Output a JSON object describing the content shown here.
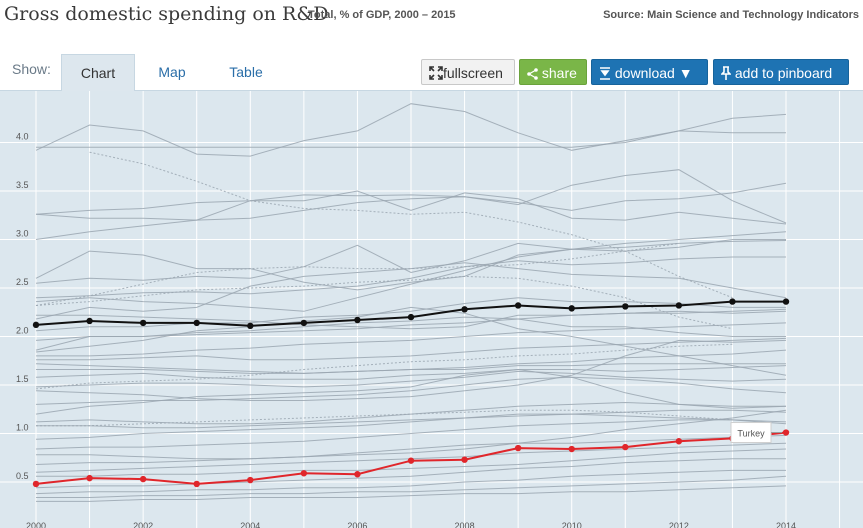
{
  "header": {
    "title": "Gross domestic spending on R&D",
    "subtitle": "Total, % of GDP, 2000 – 2015",
    "source": "Source: Main Science and Technology Indicators"
  },
  "toolbar": {
    "show_label": "Show:",
    "tabs": [
      {
        "label": "Chart",
        "active": true
      },
      {
        "label": "Map",
        "active": false
      },
      {
        "label": "Table",
        "active": false
      }
    ],
    "fullscreen_label": "fullscreen",
    "share_label": "share",
    "download_label": "download ▼",
    "pinboard_label": "add to pinboard"
  },
  "colors": {
    "background": "#dce7ee",
    "grid": "#ffffff",
    "other_countries": "#9aa6b0",
    "oecd_total": "#111111",
    "highlight": "#e0262b"
  },
  "chart_data": {
    "type": "line",
    "x": [
      2000,
      2001,
      2002,
      2003,
      2004,
      2005,
      2006,
      2007,
      2008,
      2009,
      2010,
      2011,
      2012,
      2013,
      2014
    ],
    "x_tick_labels": [
      "2000",
      "2002",
      "2004",
      "2006",
      "2008",
      "2010",
      "2012",
      "2014"
    ],
    "y_tick_labels": [
      "0.5",
      "1.0",
      "1.5",
      "2.0",
      "2.5",
      "3.0",
      "3.5",
      "4.0"
    ],
    "ylim": [
      0.25,
      4.75
    ],
    "xlim": [
      2000,
      2015
    ],
    "grid": true,
    "highlighted_series": [
      {
        "name": "Turkey",
        "color": "#e0262b",
        "labeled": true,
        "values": [
          0.48,
          0.54,
          0.53,
          0.48,
          0.52,
          0.59,
          0.58,
          0.72,
          0.73,
          0.85,
          0.84,
          0.86,
          0.92,
          0.95,
          1.01
        ]
      },
      {
        "name": "",
        "color": "#111111",
        "labeled": false,
        "values": [
          2.12,
          2.16,
          2.14,
          2.14,
          2.11,
          2.14,
          2.17,
          2.2,
          2.28,
          2.32,
          2.29,
          2.31,
          2.32,
          2.36,
          2.36
        ]
      }
    ],
    "background_series": [
      {
        "values": [
          3.92,
          4.18,
          4.12,
          3.88,
          3.86,
          4.02,
          4.12,
          4.4,
          4.32,
          4.1,
          3.92,
          4.02,
          4.12,
          4.1,
          4.1
        ]
      },
      {
        "values": [
          3.95,
          3.95,
          3.95,
          3.95,
          3.95,
          3.95,
          3.95,
          3.95,
          3.95,
          3.95,
          3.95,
          4.0,
          4.12,
          4.25,
          4.29
        ]
      },
      {
        "values": [
          3.26,
          3.22,
          3.22,
          3.2,
          3.4,
          3.4,
          3.5,
          3.3,
          3.48,
          3.42,
          3.22,
          3.2,
          3.28,
          3.22,
          3.16
        ]
      },
      {
        "values": [
          3.0,
          3.08,
          3.14,
          3.2,
          3.22,
          3.3,
          3.38,
          3.42,
          3.44,
          3.38,
          3.3,
          3.4,
          3.42,
          3.48,
          3.58
        ]
      },
      {
        "values": [
          3.26,
          3.3,
          3.32,
          3.38,
          3.4,
          3.46,
          3.45,
          3.46,
          3.44,
          3.36,
          3.56,
          3.66,
          3.72,
          3.4,
          3.17
        ]
      },
      {
        "values": [
          2.6,
          2.88,
          2.84,
          2.7,
          2.7,
          2.56,
          2.48,
          2.56,
          2.62,
          2.84,
          2.9,
          2.92,
          2.96,
          2.98,
          2.99
        ]
      },
      {
        "values": [
          2.55,
          2.6,
          2.58,
          2.62,
          2.6,
          2.72,
          2.94,
          2.66,
          2.78,
          2.96,
          2.9,
          2.88,
          2.92,
          3.0,
          3.0
        ]
      },
      {
        "values": [
          2.4,
          2.42,
          2.45,
          2.46,
          2.44,
          2.48,
          2.52,
          2.6,
          2.72,
          2.78,
          2.74,
          2.76,
          2.8,
          2.82,
          2.82
        ]
      },
      {
        "values": [
          2.18,
          2.3,
          2.26,
          2.3,
          2.52,
          2.62,
          2.66,
          2.7,
          2.76,
          2.7,
          2.64,
          2.62,
          2.6,
          2.5,
          2.4
        ]
      },
      {
        "values": [
          2.36,
          2.4,
          2.36,
          2.34,
          2.3,
          2.26,
          2.4,
          2.54,
          2.68,
          2.82,
          2.9,
          2.96,
          3.0,
          3.04,
          3.08
        ]
      },
      {
        "values": [
          2.22,
          2.22,
          2.2,
          2.18,
          2.16,
          2.12,
          2.1,
          2.08,
          2.1,
          2.22,
          2.22,
          2.24,
          2.26,
          2.24,
          2.26
        ]
      },
      {
        "values": [
          2.06,
          2.1,
          2.1,
          2.14,
          2.14,
          2.2,
          2.22,
          2.26,
          2.34,
          2.4,
          2.36,
          2.36,
          2.34,
          2.3,
          2.3
        ]
      },
      {
        "values": [
          1.96,
          2.0,
          2.0,
          2.02,
          2.04,
          2.06,
          2.08,
          2.12,
          2.14,
          2.18,
          2.22,
          2.24,
          2.24,
          2.26,
          2.28
        ]
      },
      {
        "values": [
          1.86,
          2.0,
          2.0,
          2.04,
          2.06,
          2.1,
          2.14,
          2.16,
          2.2,
          2.18,
          2.1,
          2.1,
          2.04,
          2.0,
          2.0
        ]
      },
      {
        "values": [
          1.84,
          1.9,
          1.96,
          2.06,
          2.1,
          2.16,
          2.2,
          2.3,
          2.24,
          2.08,
          2.0,
          1.9,
          1.8,
          1.7,
          1.6
        ]
      },
      {
        "values": [
          1.8,
          1.8,
          1.82,
          1.86,
          1.88,
          1.92,
          1.94,
          1.96,
          2.0,
          2.04,
          2.06,
          2.08,
          2.1,
          2.12,
          2.14
        ]
      },
      {
        "values": [
          1.76,
          1.76,
          1.78,
          1.8,
          1.76,
          1.76,
          1.78,
          1.8,
          1.84,
          1.88,
          1.9,
          1.92,
          1.94,
          1.96,
          1.98
        ]
      },
      {
        "values": [
          1.72,
          1.7,
          1.68,
          1.66,
          1.64,
          1.62,
          1.64,
          1.66,
          1.68,
          1.72,
          1.74,
          1.78,
          1.8,
          1.82,
          1.86
        ]
      },
      {
        "values": [
          1.66,
          1.66,
          1.66,
          1.64,
          1.62,
          1.62,
          1.64,
          1.66,
          1.66,
          1.7,
          1.7,
          1.72,
          1.72,
          1.72,
          1.72
        ]
      },
      {
        "values": [
          1.58,
          1.6,
          1.62,
          1.58,
          1.56,
          1.56,
          1.56,
          1.6,
          1.62,
          1.66,
          1.66,
          1.64,
          1.66,
          1.68,
          1.7
        ]
      },
      {
        "values": [
          1.48,
          1.5,
          1.52,
          1.52,
          1.5,
          1.48,
          1.5,
          1.54,
          1.58,
          1.64,
          1.62,
          1.58,
          1.56,
          1.54,
          1.56
        ]
      },
      {
        "values": [
          1.44,
          1.42,
          1.4,
          1.36,
          1.34,
          1.34,
          1.36,
          1.38,
          1.44,
          1.5,
          1.6,
          1.8,
          1.96,
          1.94,
          1.96
        ]
      },
      {
        "values": [
          1.3,
          1.32,
          1.34,
          1.34,
          1.36,
          1.38,
          1.4,
          1.44,
          1.5,
          1.56,
          1.58,
          1.56,
          1.52,
          1.46,
          1.42
        ]
      },
      {
        "values": [
          1.2,
          1.28,
          1.32,
          1.38,
          1.4,
          1.42,
          1.44,
          1.48,
          1.6,
          1.66,
          1.58,
          1.42,
          1.3,
          1.26,
          1.28
        ]
      },
      {
        "values": [
          1.12,
          1.14,
          1.12,
          1.1,
          1.1,
          1.12,
          1.16,
          1.2,
          1.24,
          1.28,
          1.3,
          1.32,
          1.3,
          1.28,
          1.28
        ]
      },
      {
        "values": [
          1.08,
          1.08,
          1.06,
          1.06,
          1.08,
          1.1,
          1.12,
          1.14,
          1.16,
          1.18,
          1.2,
          1.22,
          1.24,
          1.24,
          1.22
        ]
      },
      {
        "values": [
          0.94,
          0.96,
          1.0,
          1.02,
          1.04,
          1.06,
          1.08,
          1.12,
          1.16,
          1.2,
          1.2,
          1.18,
          1.16,
          1.14,
          1.12
        ]
      },
      {
        "values": [
          0.84,
          0.86,
          0.86,
          0.88,
          0.9,
          0.92,
          0.96,
          1.0,
          1.04,
          1.08,
          1.1,
          1.12,
          1.14,
          1.14,
          1.1
        ]
      },
      {
        "values": [
          0.78,
          0.78,
          0.76,
          0.74,
          0.74,
          0.76,
          0.78,
          0.8,
          0.84,
          0.9,
          0.96,
          1.04,
          1.1,
          1.16,
          1.24
        ]
      },
      {
        "values": [
          0.68,
          0.7,
          0.7,
          0.72,
          0.74,
          0.76,
          0.8,
          0.84,
          0.88,
          0.9,
          0.9,
          0.92,
          0.94,
          0.96,
          0.98
        ]
      },
      {
        "values": [
          0.6,
          0.62,
          0.64,
          0.66,
          0.68,
          0.7,
          0.72,
          0.74,
          0.76,
          0.8,
          0.82,
          0.84,
          0.86,
          0.88,
          0.9
        ]
      },
      {
        "values": [
          0.56,
          0.56,
          0.58,
          0.58,
          0.6,
          0.62,
          0.62,
          0.64,
          0.66,
          0.68,
          0.72,
          0.76,
          0.8,
          0.82,
          0.84
        ]
      },
      {
        "values": [
          0.44,
          0.46,
          0.46,
          0.48,
          0.5,
          0.52,
          0.54,
          0.56,
          0.6,
          0.64,
          0.66,
          0.7,
          0.72,
          0.74,
          0.74
        ]
      },
      {
        "values": [
          0.38,
          0.4,
          0.4,
          0.42,
          0.42,
          0.44,
          0.44,
          0.46,
          0.5,
          0.52,
          0.56,
          0.58,
          0.6,
          0.62,
          0.62
        ]
      },
      {
        "values": [
          0.34,
          0.34,
          0.36,
          0.36,
          0.38,
          0.38,
          0.4,
          0.4,
          0.42,
          0.44,
          0.46,
          0.48,
          0.5,
          0.52,
          0.56
        ]
      },
      {
        "values": [
          0.3,
          0.3,
          0.32,
          0.32,
          0.34,
          0.34,
          0.34,
          0.36,
          0.38,
          0.38,
          0.4,
          0.4,
          0.42,
          0.44,
          0.46
        ]
      },
      {
        "values": [
          null,
          3.9,
          3.78,
          3.6,
          3.4,
          3.32,
          3.3,
          3.26,
          3.28,
          3.18,
          3.05,
          2.88,
          2.62,
          2.4,
          null
        ],
        "dashed": true
      },
      {
        "values": [
          2.32,
          2.42,
          2.54,
          2.66,
          2.7,
          2.72,
          2.7,
          2.7,
          2.72,
          2.74,
          2.8,
          2.88,
          2.96,
          null,
          null
        ],
        "dashed": true
      },
      {
        "values": [
          2.32,
          2.36,
          2.42,
          2.48,
          2.5,
          2.52,
          2.56,
          2.58,
          2.62,
          2.6,
          2.52,
          2.4,
          2.2,
          2.08,
          null
        ],
        "dashed": true
      },
      {
        "values": [
          1.46,
          1.52,
          1.54,
          1.56,
          1.6,
          1.66,
          1.7,
          1.74,
          1.76,
          1.8,
          1.82,
          1.86,
          1.9,
          1.92,
          null
        ],
        "dashed": true
      },
      {
        "values": [
          1.08,
          1.08,
          1.1,
          1.12,
          1.14,
          1.16,
          1.18,
          1.2,
          1.22,
          1.24,
          1.24,
          1.22,
          1.18,
          1.14,
          null
        ],
        "dashed": true
      }
    ]
  }
}
